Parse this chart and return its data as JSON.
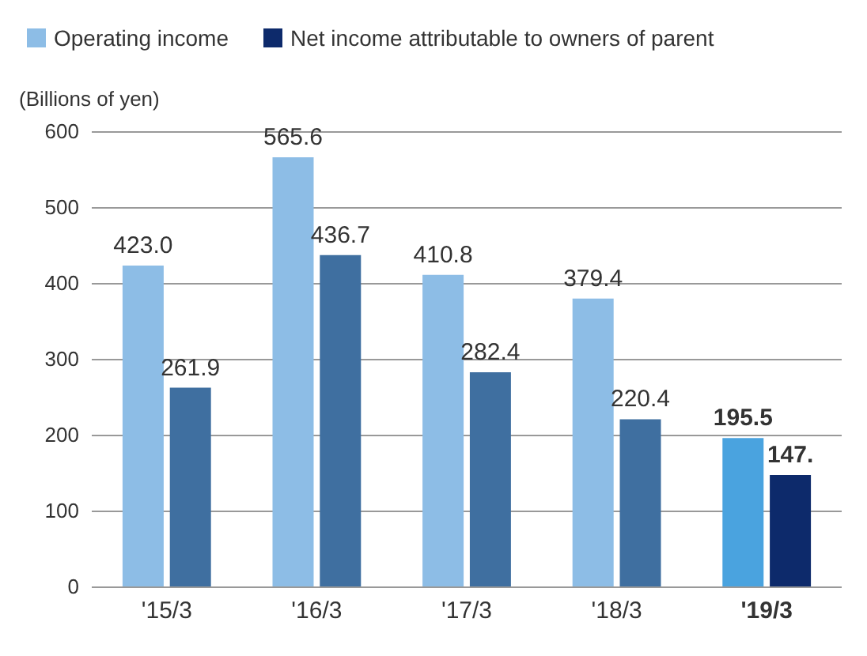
{
  "chart_data": {
    "type": "bar",
    "ylabel": "(Billions of yen)",
    "categories": [
      "'15/3",
      "'16/3",
      "'17/3",
      "'18/3",
      "'19/3"
    ],
    "series": [
      {
        "name": "Operating income",
        "color": "#8dbde6",
        "colors": [
          "#8dbde6",
          "#8dbde6",
          "#8dbde6",
          "#8dbde6",
          "#4aa3df"
        ],
        "values": [
          423.0,
          565.6,
          410.8,
          379.4,
          195.5
        ],
        "value_labels": [
          "423.0",
          "565.6",
          "410.8",
          "379.4",
          "195.5"
        ]
      },
      {
        "name": "Net income attributable to owners of parent",
        "color": "#0d2a6b",
        "colors": [
          "#3f6fa0",
          "#3f6fa0",
          "#3f6fa0",
          "#3f6fa0",
          "#0d2a6b"
        ],
        "values": [
          261.9,
          436.7,
          282.4,
          220.4,
          147
        ],
        "value_labels": [
          "261.9",
          "436.7",
          "282.4",
          "220.4",
          "147."
        ]
      }
    ],
    "ylim": [
      0,
      600
    ],
    "yticks": [
      0,
      100,
      200,
      300,
      400,
      500,
      600
    ],
    "grid": "y",
    "legend": "top left"
  }
}
